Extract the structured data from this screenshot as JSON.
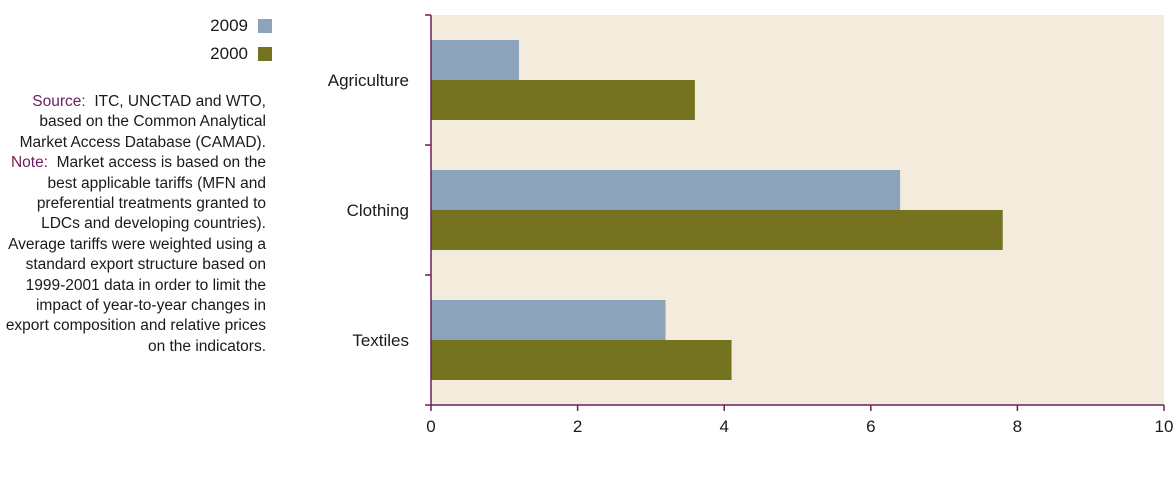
{
  "legend": {
    "entries": [
      {
        "label": "2009",
        "color": "#8da3bc"
      },
      {
        "label": "2000",
        "color": "#75731f"
      }
    ]
  },
  "notes": {
    "source_label": "Source:",
    "source_text": "ITC, UNCTAD and WTO, based on the Common Analytical Market Access Database (CAMAD).",
    "note_label": "Note:",
    "note_text": "Market access is based on the best applicable tariffs (MFN and preferential treatments granted to LDCs and developing countries). Average tariffs were weighted using a standard export structure based on 1999-2001 data in order to limit the impact of year-to-year changes in export composition and relative prices on the indicators."
  },
  "colors": {
    "plot_background": "#f3ecdc",
    "axis": "#6e1e5c"
  },
  "chart_data": {
    "type": "bar",
    "orientation": "horizontal",
    "categories": [
      "Agriculture",
      "Clothing",
      "Textiles"
    ],
    "series": [
      {
        "name": "2009",
        "color": "#8da3bc",
        "values": [
          1.2,
          6.4,
          3.2
        ]
      },
      {
        "name": "2000",
        "color": "#75731f",
        "values": [
          3.6,
          7.8,
          4.1
        ]
      }
    ],
    "xlim": [
      0,
      10
    ],
    "xticks": [
      0,
      2,
      4,
      6,
      8,
      10
    ],
    "title": "",
    "xlabel": "",
    "ylabel": "",
    "grid": false,
    "legend_position": "top-left"
  }
}
